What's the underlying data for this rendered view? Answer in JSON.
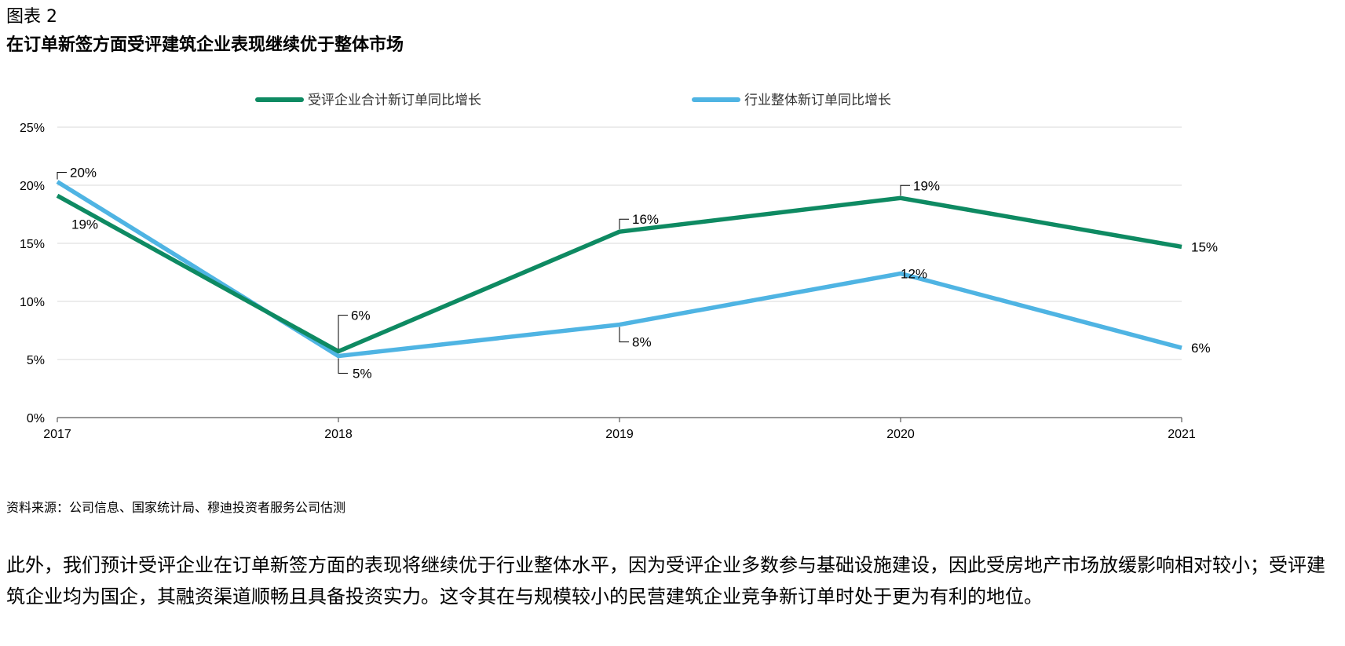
{
  "figure_label": "图表 2",
  "figure_title": "在订单新签方面受评建筑企业表现继续优于整体市场",
  "source": "资料来源：公司信息、国家统计局、穆迪投资者服务公司估测",
  "paragraph": "此外，我们预计受评企业在订单新签方面的表现将继续优于行业整体水平，因为受评企业多数参与基础设施建设，因此受房地产市场放缓影响相对较小；受评建筑企业均为国企，其融资渠道顺畅且具备投资实力。这令其在与规模较小的民营建筑企业竞争新订单时处于更为有利的地位。",
  "chart_data": {
    "type": "line",
    "categories": [
      "2017",
      "2018",
      "2019",
      "2020",
      "2021"
    ],
    "ylim": [
      0,
      25
    ],
    "yticks": [
      "0%",
      "5%",
      "10%",
      "15%",
      "20%",
      "25%"
    ],
    "grid": true,
    "legend_position": "top",
    "series": [
      {
        "name": "受评企业合计新订单同比增长",
        "color": "#0e8a62",
        "values": [
          19.1,
          5.7,
          16.0,
          18.9,
          14.7
        ],
        "labels": [
          "19%",
          "6%",
          "16%",
          "19%",
          "15%"
        ]
      },
      {
        "name": "行业整体新订单同比增长",
        "color": "#4fb4e3",
        "values": [
          20.3,
          5.3,
          8.0,
          12.4,
          6.0
        ],
        "labels": [
          "20%",
          "5%",
          "8%",
          "12%",
          "6%"
        ]
      }
    ]
  }
}
